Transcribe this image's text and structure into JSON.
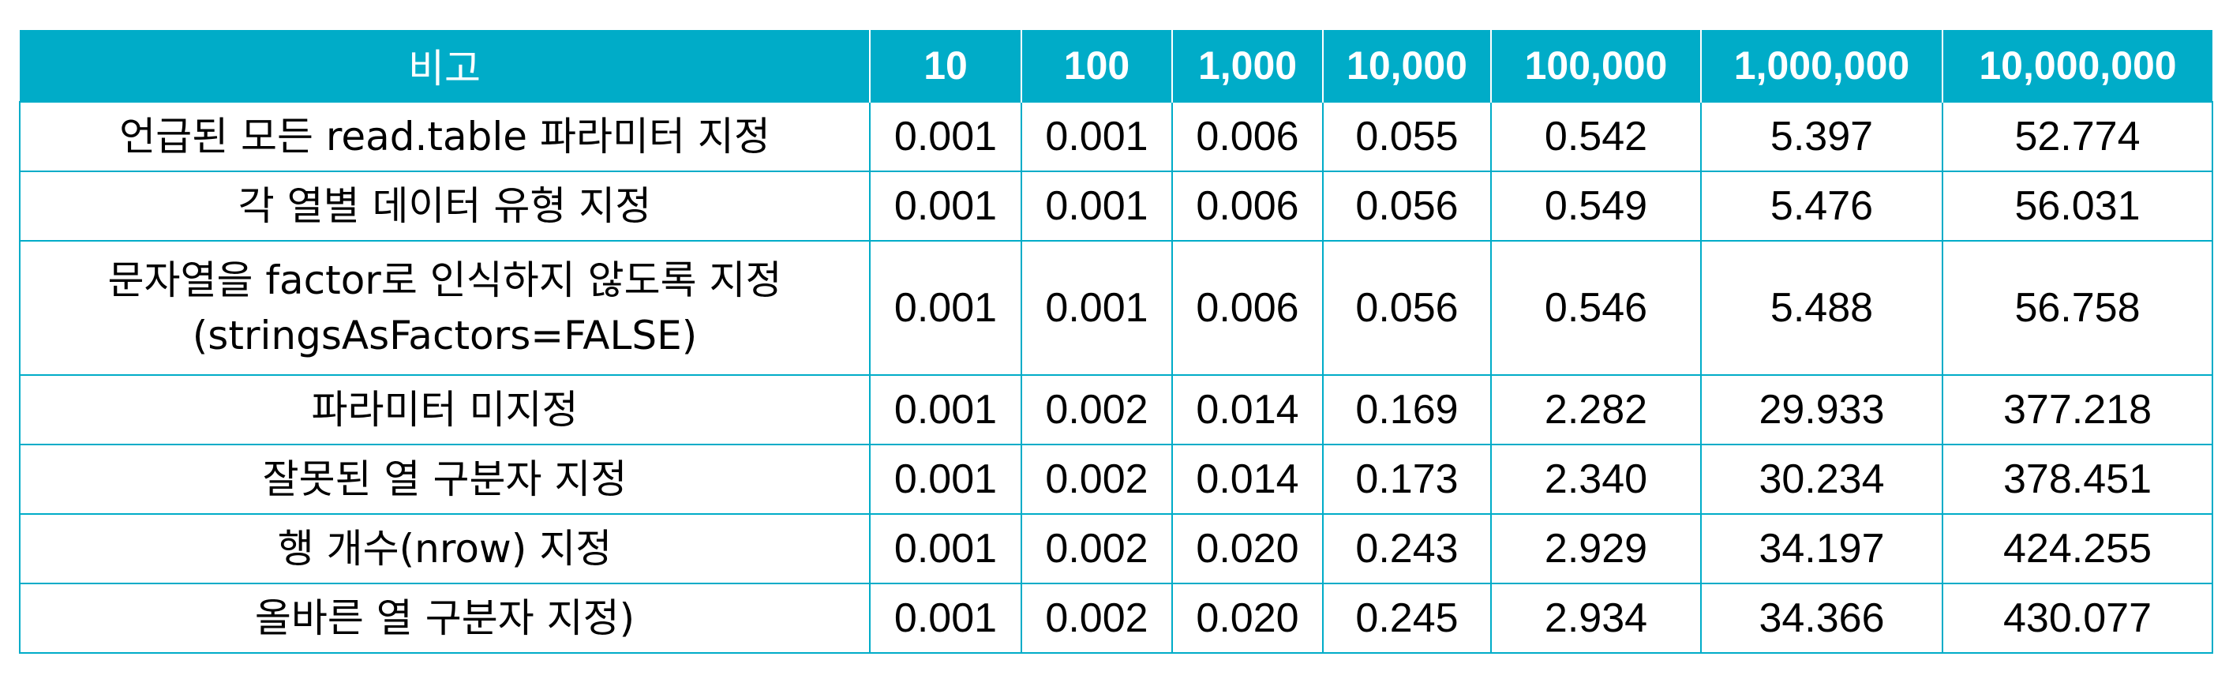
{
  "table": {
    "header": {
      "label": "비고",
      "columns": [
        "10",
        "100",
        "1,000",
        "10,000",
        "100,000",
        "1,000,000",
        "10,000,000"
      ]
    },
    "rows": [
      {
        "label": [
          "언급된 모든 read.table 파라미터 지정"
        ],
        "values": [
          "0.001",
          "0.001",
          "0.006",
          "0.055",
          "0.542",
          "5.397",
          "52.774"
        ]
      },
      {
        "label": [
          "각 열별 데이터 유형 지정"
        ],
        "values": [
          "0.001",
          "0.001",
          "0.006",
          "0.056",
          "0.549",
          "5.476",
          "56.031"
        ]
      },
      {
        "label": [
          "문자열을 factor로 인식하지 않도록 지정",
          "(stringsAsFactors=FALSE)"
        ],
        "values": [
          "0.001",
          "0.001",
          "0.006",
          "0.056",
          "0.546",
          "5.488",
          "56.758"
        ]
      },
      {
        "label": [
          "파라미터 미지정"
        ],
        "values": [
          "0.001",
          "0.002",
          "0.014",
          "0.169",
          "2.282",
          "29.933",
          "377.218"
        ]
      },
      {
        "label": [
          "잘못된 열 구분자 지정"
        ],
        "values": [
          "0.001",
          "0.002",
          "0.014",
          "0.173",
          "2.340",
          "30.234",
          "378.451"
        ]
      },
      {
        "label": [
          "행 개수(nrow) 지정"
        ],
        "values": [
          "0.001",
          "0.002",
          "0.020",
          "0.243",
          "2.929",
          "34.197",
          "424.255"
        ]
      },
      {
        "label": [
          "올바른 열 구분자 지정)"
        ],
        "values": [
          "0.001",
          "0.002",
          "0.020",
          "0.245",
          "2.934",
          "34.366",
          "430.077"
        ]
      }
    ]
  },
  "colors": {
    "header_bg": "#00acc8",
    "header_text": "#ffffff",
    "border": "#00acc8",
    "cell_text": "#000000"
  }
}
